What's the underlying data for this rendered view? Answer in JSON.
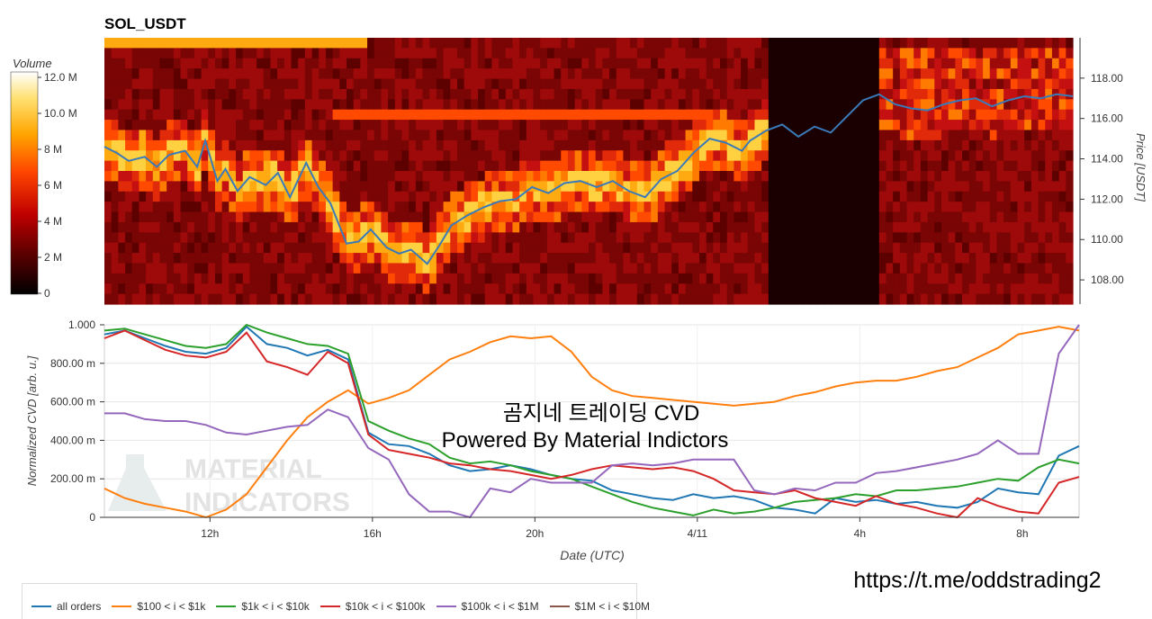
{
  "title": "SOL_USDT",
  "colorbar": {
    "label": "Volume",
    "ticks": [
      "12.0 M",
      "10.0 M",
      "8 M",
      "6 M",
      "4 M",
      "2 M",
      "0"
    ]
  },
  "heatmap": {
    "price_ticks": [
      "118.00",
      "116.00",
      "114.00",
      "112.00",
      "110.00",
      "108.00"
    ],
    "price_label": "Price [USDT]"
  },
  "cvd": {
    "y_ticks": [
      "1.000",
      "800.00 m",
      "600.00 m",
      "400.00 m",
      "200.00 m",
      "0"
    ],
    "y_label": "Normalized CVD [arb. u.]",
    "x_ticks": [
      "12h",
      "16h",
      "20h",
      "4/11",
      "4h",
      "8h"
    ],
    "x_label": "Date (UTC)"
  },
  "overlay": {
    "line1": "곰지네 트레이딩 CVD",
    "line2": "Powered By Material Indictors",
    "watermark1": "MATERIAL",
    "watermark2": "INDICATORS",
    "link": "https://t.me/oddstrading2"
  },
  "legend": [
    {
      "name": "all orders",
      "color": "#1f77b4"
    },
    {
      "name": "$100 < i < $1k",
      "color": "#ff7f0e"
    },
    {
      "name": "$1k < i < $10k",
      "color": "#2ca02c"
    },
    {
      "name": "$10k < i < $100k",
      "color": "#d62728"
    },
    {
      "name": "$100k < i < $1M",
      "color": "#9467bd"
    },
    {
      "name": "$1M < i < $10M",
      "color": "#8c564b"
    }
  ],
  "chart_data": [
    {
      "type": "heatmap",
      "title": "SOL_USDT",
      "ylabel": "Price [USDT]",
      "ylim": [
        106.8,
        120.0
      ],
      "colorbar_range_M": [
        0,
        12
      ],
      "price_series": {
        "name": "price",
        "t_hours": [
          0,
          0.3,
          0.6,
          1,
          1.3,
          1.6,
          2,
          2.3,
          2.5,
          2.8,
          3,
          3.3,
          3.6,
          4,
          4.3,
          4.6,
          5,
          5.3,
          5.6,
          6,
          6.3,
          6.6,
          7,
          7.3,
          7.6,
          8,
          8.3,
          8.6,
          9,
          9.4,
          9.8,
          10.2,
          10.6,
          11,
          11.4,
          11.8,
          12.2,
          12.6,
          13,
          13.4,
          13.8,
          14.2,
          14.6,
          15,
          15.4,
          15.8,
          16,
          16.4,
          16.8,
          17.2,
          17.6,
          18,
          18.4,
          18.8,
          19.2,
          19.6,
          20,
          20.4,
          20.8,
          21.2,
          21.6,
          22,
          22.4,
          22.8,
          23.2,
          23.6,
          24
        ],
        "price": [
          114.6,
          114.3,
          113.9,
          114.1,
          113.6,
          114.2,
          114.4,
          113.6,
          114.9,
          112.9,
          113.5,
          112.4,
          113.1,
          112.7,
          113.3,
          112.1,
          113.8,
          112.6,
          111.8,
          109.8,
          109.9,
          110.5,
          109.6,
          109.3,
          109.5,
          108.8,
          109.7,
          110.7,
          111.2,
          111.6,
          111.9,
          112.0,
          112.6,
          112.3,
          112.8,
          112.9,
          112.6,
          112.9,
          112.4,
          112.1,
          113.0,
          113.4,
          114.3,
          115.0,
          114.8,
          114.4,
          114.9,
          115.4,
          115.7,
          115.1,
          115.6,
          115.3,
          116.1,
          116.9,
          117.2,
          116.7,
          116.5,
          116.4,
          116.7,
          116.9,
          117.0,
          116.6,
          116.9,
          117.1,
          117.0,
          117.2,
          117.1
        ]
      },
      "x_ticks": [
        "12h",
        "16h",
        "20h",
        "4/11",
        "4h",
        "8h"
      ]
    },
    {
      "type": "line",
      "xlabel": "Date (UTC)",
      "ylabel": "Normalized CVD [arb. u.]",
      "ylim": [
        0,
        1.0
      ],
      "x_hours": [
        0,
        0.5,
        1,
        1.5,
        2,
        2.5,
        3,
        3.5,
        4,
        4.5,
        5,
        5.5,
        6,
        6.5,
        7,
        7.5,
        8,
        8.5,
        9,
        9.5,
        10,
        10.5,
        11,
        11.5,
        12,
        12.5,
        13,
        13.5,
        14,
        14.5,
        15,
        15.5,
        16,
        16.5,
        17,
        17.5,
        18,
        18.5,
        19,
        19.5,
        20,
        20.5,
        21,
        21.5,
        22,
        22.5,
        23,
        23.5,
        24
      ],
      "series": [
        {
          "name": "all orders",
          "values": [
            0.95,
            0.97,
            0.93,
            0.89,
            0.86,
            0.85,
            0.88,
            0.99,
            0.9,
            0.88,
            0.84,
            0.87,
            0.82,
            0.44,
            0.38,
            0.37,
            0.33,
            0.27,
            0.24,
            0.25,
            0.27,
            0.25,
            0.22,
            0.2,
            0.19,
            0.14,
            0.12,
            0.1,
            0.09,
            0.12,
            0.1,
            0.11,
            0.09,
            0.05,
            0.04,
            0.02,
            0.1,
            0.08,
            0.09,
            0.07,
            0.08,
            0.06,
            0.05,
            0.08,
            0.15,
            0.13,
            0.12,
            0.32,
            0.37
          ]
        },
        {
          "name": "$100 < i < $1k",
          "values": [
            0.15,
            0.1,
            0.07,
            0.05,
            0.03,
            0.0,
            0.04,
            0.12,
            0.26,
            0.4,
            0.52,
            0.6,
            0.66,
            0.59,
            0.62,
            0.66,
            0.74,
            0.82,
            0.86,
            0.91,
            0.94,
            0.93,
            0.94,
            0.86,
            0.73,
            0.66,
            0.63,
            0.62,
            0.61,
            0.6,
            0.59,
            0.58,
            0.59,
            0.6,
            0.63,
            0.65,
            0.68,
            0.7,
            0.71,
            0.71,
            0.73,
            0.76,
            0.78,
            0.83,
            0.88,
            0.95,
            0.97,
            0.99,
            0.97
          ]
        },
        {
          "name": "$1k < i < $10k",
          "values": [
            0.97,
            0.98,
            0.95,
            0.92,
            0.89,
            0.88,
            0.9,
            1.0,
            0.96,
            0.93,
            0.9,
            0.89,
            0.85,
            0.5,
            0.45,
            0.41,
            0.38,
            0.31,
            0.28,
            0.29,
            0.27,
            0.24,
            0.22,
            0.2,
            0.16,
            0.12,
            0.08,
            0.05,
            0.03,
            0.01,
            0.04,
            0.02,
            0.03,
            0.05,
            0.08,
            0.09,
            0.1,
            0.12,
            0.11,
            0.14,
            0.14,
            0.15,
            0.16,
            0.18,
            0.2,
            0.19,
            0.26,
            0.3,
            0.28
          ]
        },
        {
          "name": "$10k < i < $100k",
          "values": [
            0.93,
            0.97,
            0.92,
            0.87,
            0.84,
            0.83,
            0.86,
            0.96,
            0.81,
            0.78,
            0.74,
            0.86,
            0.8,
            0.43,
            0.35,
            0.33,
            0.31,
            0.28,
            0.27,
            0.25,
            0.24,
            0.22,
            0.2,
            0.22,
            0.25,
            0.27,
            0.26,
            0.25,
            0.26,
            0.24,
            0.2,
            0.14,
            0.13,
            0.12,
            0.14,
            0.1,
            0.08,
            0.06,
            0.11,
            0.07,
            0.05,
            0.02,
            0.0,
            0.1,
            0.06,
            0.03,
            0.02,
            0.18,
            0.21
          ]
        },
        {
          "name": "$100k < i < $1M",
          "values": [
            0.54,
            0.54,
            0.51,
            0.5,
            0.5,
            0.48,
            0.44,
            0.43,
            0.45,
            0.47,
            0.48,
            0.56,
            0.52,
            0.36,
            0.3,
            0.12,
            0.03,
            0.03,
            0.0,
            0.15,
            0.13,
            0.2,
            0.18,
            0.18,
            0.18,
            0.27,
            0.28,
            0.27,
            0.28,
            0.3,
            0.3,
            0.3,
            0.14,
            0.12,
            0.15,
            0.14,
            0.18,
            0.18,
            0.23,
            0.24,
            0.26,
            0.28,
            0.3,
            0.33,
            0.4,
            0.33,
            0.33,
            0.85,
            1.0
          ]
        },
        {
          "name": "$1M < i < $10M",
          "values": []
        }
      ]
    }
  ]
}
